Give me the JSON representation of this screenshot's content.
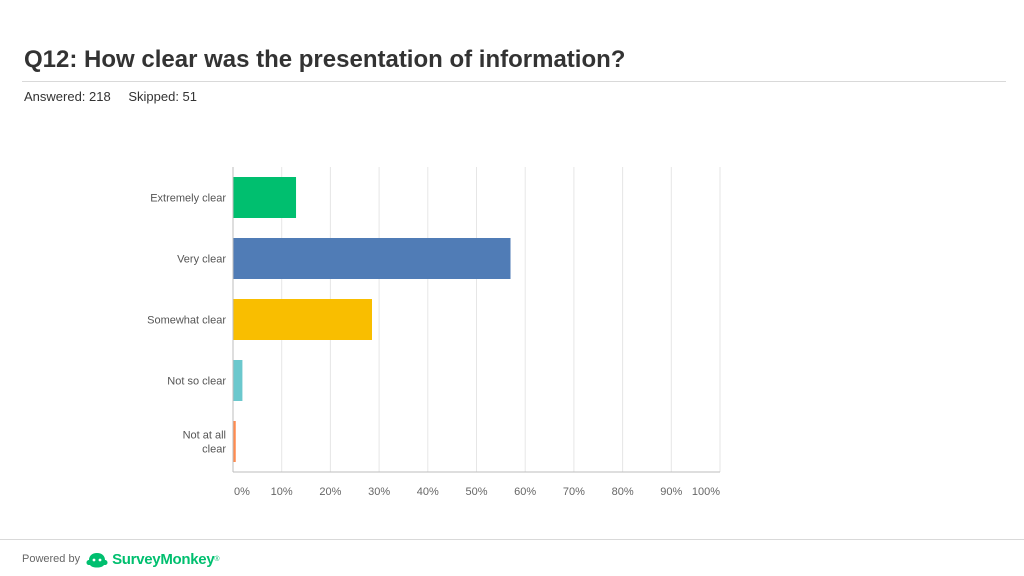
{
  "header": {
    "title": "Q12: How clear was the presentation of information?",
    "answered": "Answered: 218",
    "skipped": "Skipped: 51"
  },
  "chart_data": {
    "type": "bar",
    "orientation": "horizontal",
    "categories": [
      "Extremely clear",
      "Very clear",
      "Somewhat clear",
      "Not so clear",
      "Not at all clear"
    ],
    "values": [
      12.84,
      56.88,
      28.44,
      1.83,
      0.46
    ],
    "colors": [
      "#00bf6f",
      "#507cb6",
      "#f9be00",
      "#6bc8cd",
      "#ff8b4f"
    ],
    "xlim": [
      0,
      100
    ],
    "x_ticks": [
      "0%",
      "10%",
      "20%",
      "30%",
      "40%",
      "50%",
      "60%",
      "70%",
      "80%",
      "90%",
      "100%"
    ],
    "grid": true
  },
  "footer": {
    "powered_by": "Powered by",
    "brand": "SurveyMonkey",
    "trademark": "®",
    "logo_icon": "surveymonkey-logo-icon"
  }
}
